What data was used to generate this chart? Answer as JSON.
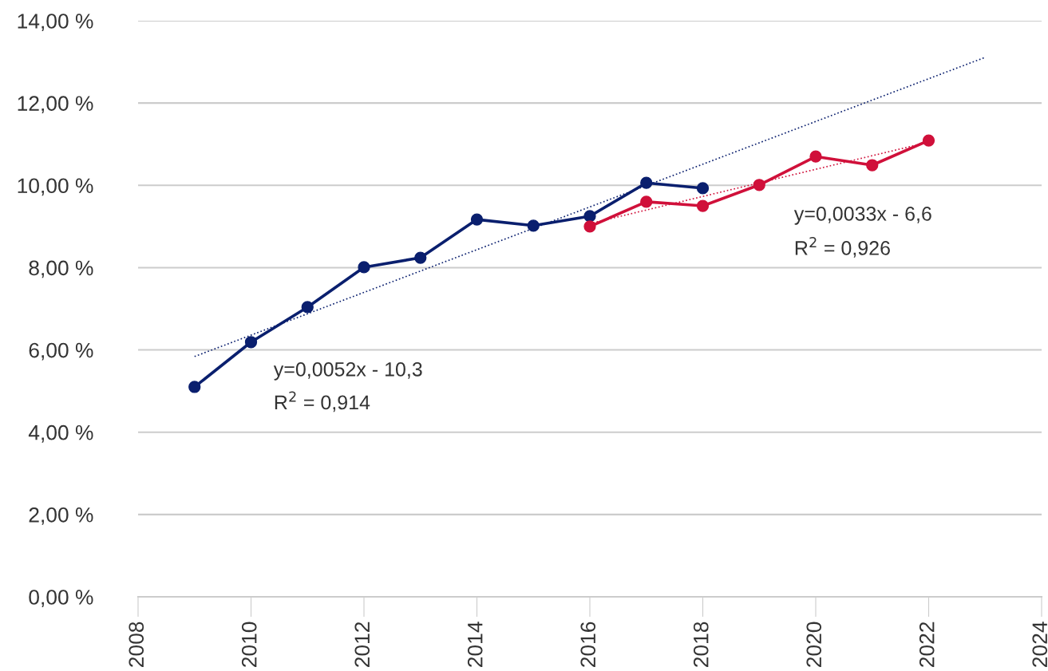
{
  "chart_data": {
    "type": "line",
    "marker": "circle",
    "grid": "y",
    "legend": false,
    "xlim": [
      2008,
      2024
    ],
    "xticks": [
      2008,
      2010,
      2012,
      2014,
      2016,
      2018,
      2020,
      2022,
      2024
    ],
    "ylim": [
      0,
      14
    ],
    "yticks": [
      {
        "value": 0,
        "label": "0,00 %"
      },
      {
        "value": 2,
        "label": "2,00 %"
      },
      {
        "value": 4,
        "label": "4,00 %"
      },
      {
        "value": 6,
        "label": "6,00 %"
      },
      {
        "value": 8,
        "label": "8,00 %"
      },
      {
        "value": 10,
        "label": "10,00 %"
      },
      {
        "value": 12,
        "label": "12,00 %"
      },
      {
        "value": 14,
        "label": "14,00 %"
      }
    ],
    "series": [
      {
        "color": "#0a1f6e",
        "x": [
          2009,
          2010,
          2011,
          2012,
          2013,
          2014,
          2015,
          2016,
          2017,
          2018
        ],
        "values": [
          5.1,
          6.19,
          7.04,
          8.01,
          8.24,
          9.17,
          9.02,
          9.25,
          10.06,
          9.93
        ]
      },
      {
        "color": "#d0103a",
        "x": [
          2016,
          2017,
          2018,
          2019,
          2020,
          2021,
          2022
        ],
        "values": [
          9.0,
          9.6,
          9.5,
          10.01,
          10.7,
          10.49,
          11.09
        ]
      },
      {
        "type": "line",
        "marker": "none",
        "line_style": "dotted",
        "color": "#0a1f6e",
        "x": [
          2009,
          2023
        ],
        "values": [
          5.84,
          13.11
        ]
      },
      {
        "type": "line",
        "marker": "none",
        "line_style": "dotted",
        "color": "#d0103a",
        "x": [
          2016,
          2022
        ],
        "values": [
          9.07,
          11.05
        ]
      }
    ],
    "annotations": [
      "y=0,0052x - 10,3",
      "R$^{2}$ = 0,914",
      "y=0,0033x - 6,6",
      "R$^{2}$ = 0,926"
    ]
  }
}
